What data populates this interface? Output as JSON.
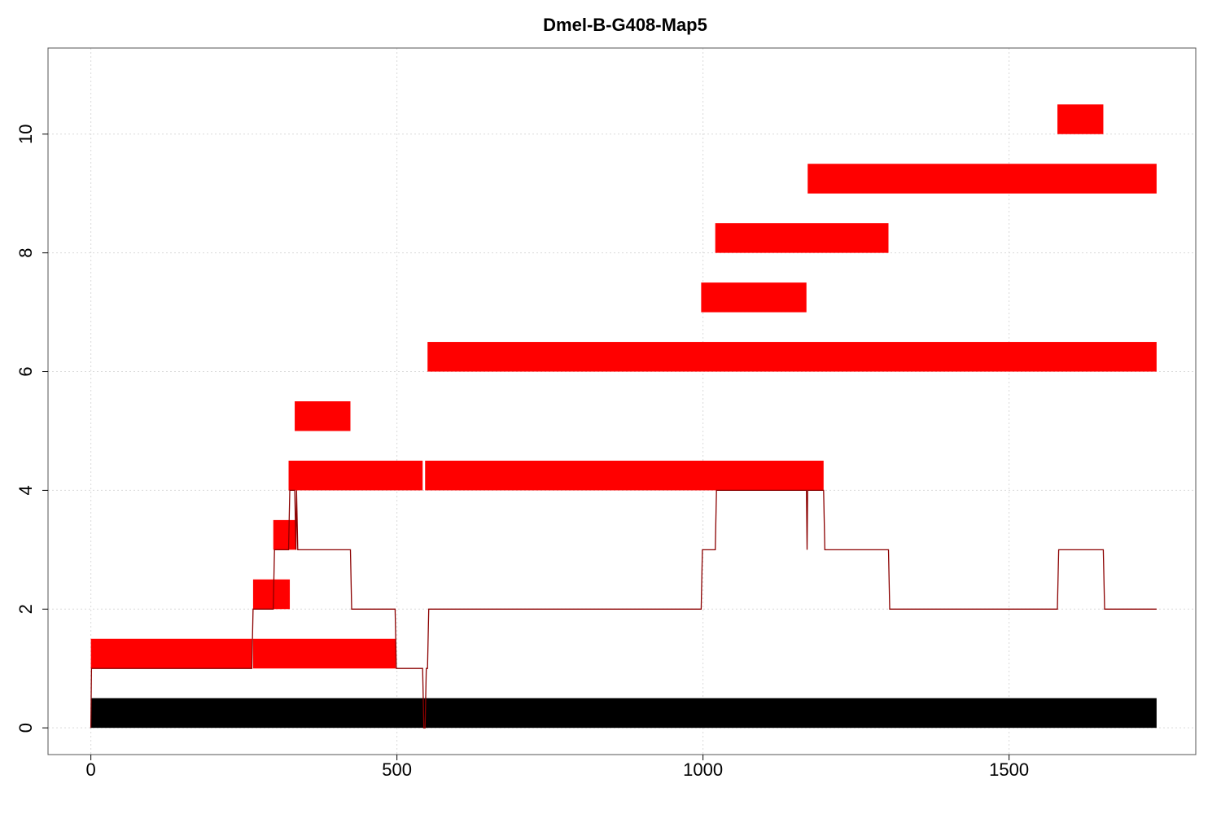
{
  "chart_data": {
    "type": "bar",
    "title": "Dmel-B-G408-Map5",
    "xlabel": "",
    "ylabel": "",
    "xlim": [
      -70,
      1805
    ],
    "ylim": [
      -0.45,
      11.45
    ],
    "x_ticks": [
      0,
      500,
      1000,
      1500
    ],
    "y_ticks": [
      0,
      2,
      4,
      6,
      8,
      10
    ],
    "grid": true,
    "colors": {
      "read": "#ff0000",
      "reference": "#000000",
      "coverage": "#8b0000"
    },
    "reference_bar": {
      "x0": 0,
      "x1": 1741,
      "y0": 0,
      "y1": 0.5
    },
    "segments": [
      {
        "x0": 0,
        "x1": 263,
        "y0": 1,
        "y1": 1.5
      },
      {
        "x0": 265,
        "x1": 498,
        "y0": 1,
        "y1": 1.5
      },
      {
        "x0": 265,
        "x1": 325,
        "y0": 2,
        "y1": 2.5
      },
      {
        "x0": 298,
        "x1": 335,
        "y0": 3,
        "y1": 3.5
      },
      {
        "x0": 323,
        "x1": 542,
        "y0": 4,
        "y1": 4.5
      },
      {
        "x0": 546,
        "x1": 1197,
        "y0": 4,
        "y1": 4.5
      },
      {
        "x0": 333,
        "x1": 424,
        "y0": 5,
        "y1": 5.5
      },
      {
        "x0": 550,
        "x1": 1741,
        "y0": 6,
        "y1": 6.5
      },
      {
        "x0": 997,
        "x1": 1169,
        "y0": 7,
        "y1": 7.5
      },
      {
        "x0": 1020,
        "x1": 1303,
        "y0": 8,
        "y1": 8.5
      },
      {
        "x0": 1171,
        "x1": 1741,
        "y0": 9,
        "y1": 9.5
      },
      {
        "x0": 1579,
        "x1": 1654,
        "y0": 10,
        "y1": 10.5
      }
    ],
    "coverage_line": {
      "x": [
        0,
        1,
        263,
        265,
        298,
        300,
        323,
        325,
        333,
        335,
        336,
        338,
        340,
        424,
        426,
        497,
        499,
        542,
        544,
        546,
        548,
        550,
        552,
        997,
        999,
        1020,
        1022,
        1169,
        1170,
        1171,
        1172,
        1197,
        1199,
        1303,
        1305,
        1579,
        1581,
        1654,
        1656,
        1741
      ],
      "y": [
        0,
        1,
        1,
        2,
        2,
        3,
        3,
        4,
        4,
        3,
        4,
        3,
        3,
        3,
        2,
        2,
        1,
        1,
        0,
        0,
        1,
        1,
        2,
        2,
        3,
        3,
        4,
        4,
        3,
        4,
        4,
        4,
        3,
        3,
        2,
        2,
        3,
        3,
        2,
        2
      ]
    }
  }
}
